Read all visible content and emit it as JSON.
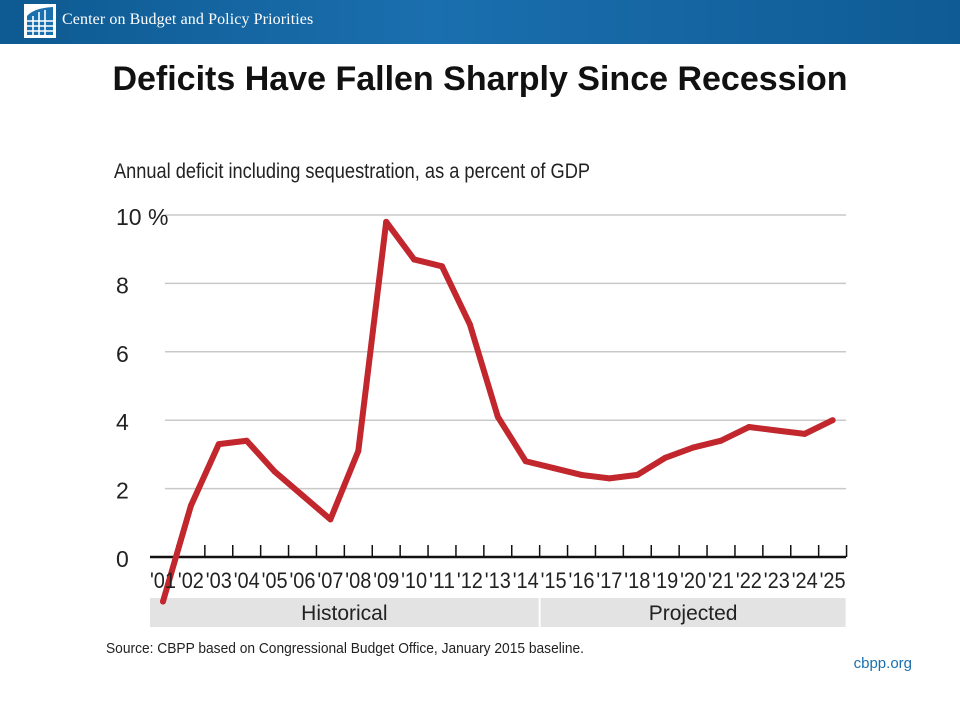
{
  "header": {
    "org_name": "Center on Budget and Policy Priorities",
    "logo_icon": "cbpp-logo-icon",
    "colors": {
      "banner": "#1a6fae",
      "text": "#ffffff"
    }
  },
  "slide": {
    "title": "Deficits Have Fallen Sharply Since Recession"
  },
  "footer": {
    "link": "cbpp.org"
  },
  "chart_data": {
    "type": "line",
    "title": "Annual deficit including sequestration, as a percent of GDP",
    "xlabel": "",
    "ylabel": "",
    "categories": [
      "'01",
      "'02",
      "'03",
      "'04",
      "'05",
      "'06",
      "'07",
      "'08",
      "'09",
      "'10",
      "'11",
      "'12",
      "'13",
      "'14",
      "'15",
      "'16",
      "'17",
      "'18",
      "'19",
      "'20",
      "'21",
      "'22",
      "'23",
      "'24",
      "'25"
    ],
    "series": [
      {
        "values": [
          -1.3,
          1.5,
          3.3,
          3.4,
          2.5,
          1.8,
          1.1,
          3.1,
          9.8,
          8.7,
          8.5,
          6.8,
          4.1,
          2.8,
          2.6,
          2.4,
          2.3,
          2.4,
          2.9,
          3.2,
          3.4,
          3.8,
          3.7,
          3.6,
          4.0
        ],
        "color": "#c1272d"
      }
    ],
    "ylim": [
      0,
      10
    ],
    "yticks": [
      {
        "value": 10,
        "label": "10 %"
      },
      {
        "value": 8,
        "label": "8"
      },
      {
        "value": 6,
        "label": "6"
      },
      {
        "value": 4,
        "label": "4"
      },
      {
        "value": 2,
        "label": "2"
      },
      {
        "value": 0,
        "label": "0"
      }
    ],
    "grid": true,
    "periods": [
      {
        "label": "Historical",
        "from": "'01",
        "to": "'14"
      },
      {
        "label": "Projected",
        "from": "'15",
        "to": "'25"
      }
    ],
    "source": "Source: CBPP based on Congressional Budget Office, January 2015 baseline."
  }
}
